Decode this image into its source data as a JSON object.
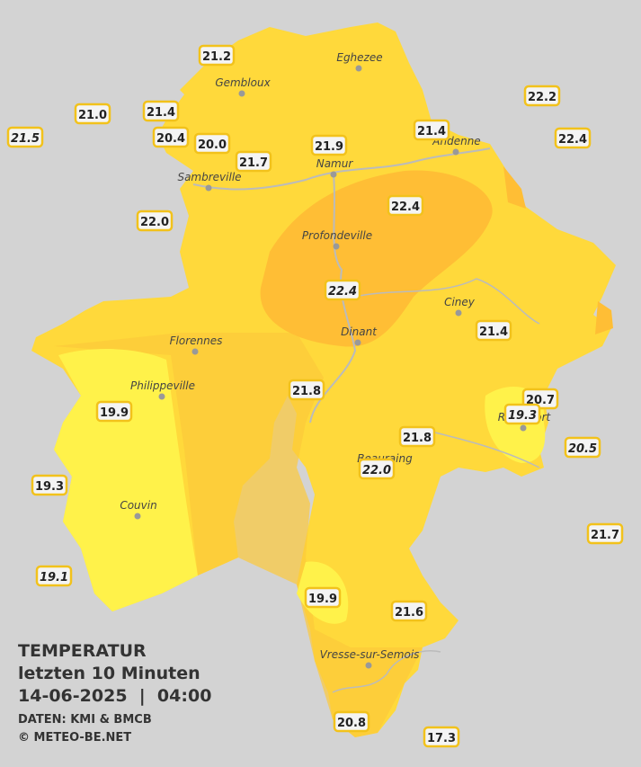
{
  "legend": {
    "title": "TEMPERATUR",
    "subtitle": "letzten 10 Minuten",
    "datetime": "14-06-2025  |  04:00",
    "source": "DATEN: KMI & BMCB",
    "copyright": "© METEO-BE.NET"
  },
  "places": [
    {
      "name": "Eghezee"
    },
    {
      "name": "Gembloux"
    },
    {
      "name": "Andenne"
    },
    {
      "name": "Namur"
    },
    {
      "name": "Sambreville"
    },
    {
      "name": "Profondeville"
    },
    {
      "name": "Ciney"
    },
    {
      "name": "Dinant"
    },
    {
      "name": "Florennes"
    },
    {
      "name": "Philippeville"
    },
    {
      "name": "Rochefort"
    },
    {
      "name": "Beauraing"
    },
    {
      "name": "Couvin"
    },
    {
      "name": "Vresse-sur-Semois"
    }
  ],
  "stations": [
    {
      "value": "21.2"
    },
    {
      "value": "21.0"
    },
    {
      "value": "21.4"
    },
    {
      "value": "21.5"
    },
    {
      "value": "20.4"
    },
    {
      "value": "20.0"
    },
    {
      "value": "21.7"
    },
    {
      "value": "21.9"
    },
    {
      "value": "21.4"
    },
    {
      "value": "22.2"
    },
    {
      "value": "22.4"
    },
    {
      "value": "22.0"
    },
    {
      "value": "22.4"
    },
    {
      "value": "22.4"
    },
    {
      "value": "21.4"
    },
    {
      "value": "21.8"
    },
    {
      "value": "20.7"
    },
    {
      "value": "19.3"
    },
    {
      "value": "19.9"
    },
    {
      "value": "21.8"
    },
    {
      "value": "20.5"
    },
    {
      "value": "22.0"
    },
    {
      "value": "19.3"
    },
    {
      "value": "21.7"
    },
    {
      "value": "19.1"
    },
    {
      "value": "19.9"
    },
    {
      "value": "21.6"
    },
    {
      "value": "20.8"
    },
    {
      "value": "17.3"
    }
  ]
}
